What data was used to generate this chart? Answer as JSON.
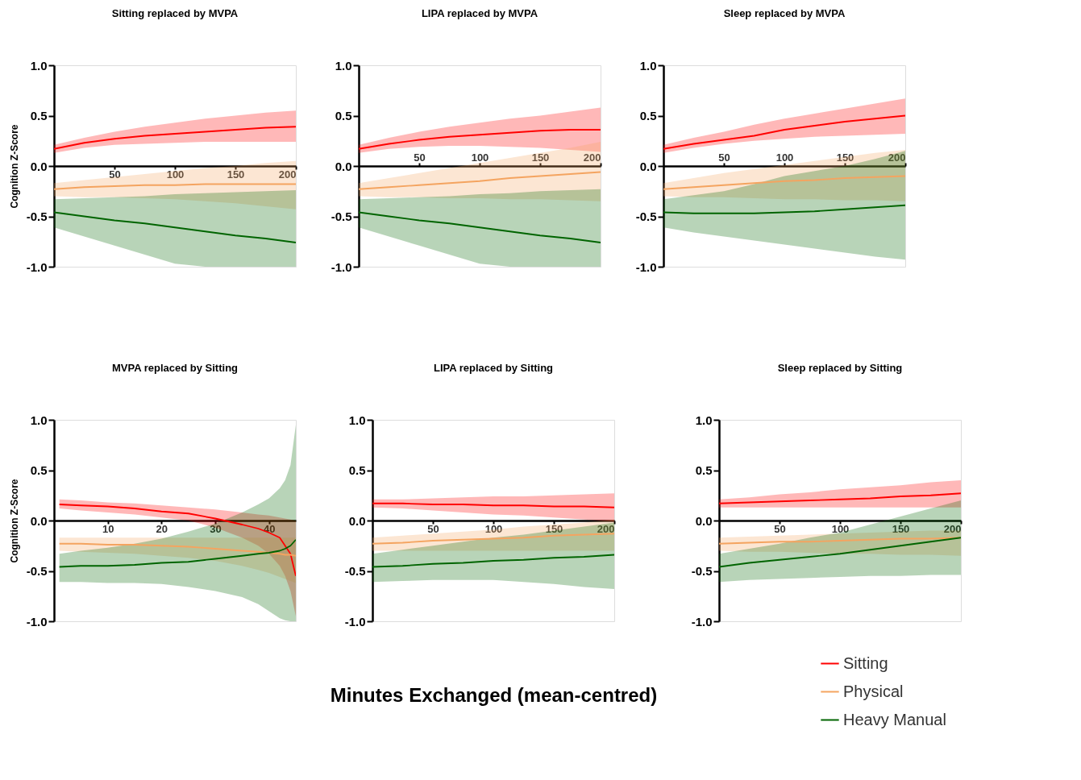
{
  "chart_data": [
    {
      "type": "line",
      "title": "Sitting replaced by MVPA",
      "ylabel": "Cognition Z-Score",
      "x": [
        0,
        25,
        50,
        75,
        100,
        125,
        150,
        175,
        200
      ],
      "xlim": [
        0,
        200
      ],
      "xticks": [
        50,
        100,
        150,
        200
      ],
      "ylim": [
        -1,
        1
      ],
      "yticks": [
        {
          "value": -1,
          "label": "-1.0"
        },
        {
          "value": -0.5,
          "label": "-0.5"
        },
        {
          "value": 0,
          "label": "0.0"
        },
        {
          "value": 0.5,
          "label": "0.5"
        },
        {
          "value": 1,
          "label": "1.0"
        }
      ],
      "grid": false,
      "line_style": "solid",
      "series": [
        {
          "color": "#ff0000",
          "values": [
            0.17,
            0.23,
            0.27,
            0.3,
            0.32,
            0.34,
            0.36,
            0.38,
            0.39
          ],
          "upper": [
            0.21,
            0.28,
            0.34,
            0.39,
            0.43,
            0.47,
            0.5,
            0.53,
            0.55
          ],
          "lower": [
            0.13,
            0.18,
            0.21,
            0.22,
            0.23,
            0.24,
            0.24,
            0.24,
            0.24
          ]
        },
        {
          "color": "#f4a460",
          "values": [
            -0.23,
            -0.21,
            -0.2,
            -0.19,
            -0.19,
            -0.18,
            -0.18,
            -0.18,
            -0.18
          ],
          "upper": [
            -0.17,
            -0.14,
            -0.11,
            -0.08,
            -0.05,
            -0.02,
            0.0,
            0.03,
            0.05
          ],
          "lower": [
            -0.3,
            -0.31,
            -0.31,
            -0.32,
            -0.33,
            -0.35,
            -0.37,
            -0.4,
            -0.43
          ]
        },
        {
          "color": "#006400",
          "values": [
            -0.46,
            -0.5,
            -0.54,
            -0.57,
            -0.61,
            -0.65,
            -0.69,
            -0.72,
            -0.76
          ],
          "upper": [
            -0.33,
            -0.32,
            -0.31,
            -0.3,
            -0.28,
            -0.27,
            -0.26,
            -0.25,
            -0.24
          ],
          "lower": [
            -0.61,
            -0.7,
            -0.79,
            -0.88,
            -0.97,
            -1.0,
            -1.0,
            -1.0,
            -1.0
          ]
        }
      ]
    },
    {
      "type": "line",
      "title": "LIPA replaced by MVPA",
      "x": [
        0,
        25,
        50,
        75,
        100,
        125,
        150,
        175,
        200
      ],
      "xlim": [
        0,
        200
      ],
      "xticks": [
        50,
        100,
        150,
        200
      ],
      "ylim": [
        -1,
        1
      ],
      "yticks": [
        {
          "value": -1,
          "label": "-1.0"
        },
        {
          "value": -0.5,
          "label": "-0.5"
        },
        {
          "value": 0,
          "label": "0.0"
        },
        {
          "value": 0.5,
          "label": "0.5"
        },
        {
          "value": 1,
          "label": "1.0"
        }
      ],
      "grid": false,
      "line_style": "solid",
      "series": [
        {
          "color": "#ff0000",
          "values": [
            0.17,
            0.22,
            0.26,
            0.29,
            0.31,
            0.33,
            0.35,
            0.36,
            0.36
          ],
          "upper": [
            0.21,
            0.28,
            0.34,
            0.39,
            0.43,
            0.47,
            0.5,
            0.54,
            0.58
          ],
          "lower": [
            0.13,
            0.17,
            0.19,
            0.2,
            0.2,
            0.19,
            0.18,
            0.16,
            0.14
          ]
        },
        {
          "color": "#f4a460",
          "values": [
            -0.23,
            -0.21,
            -0.19,
            -0.17,
            -0.15,
            -0.12,
            -0.1,
            -0.08,
            -0.06
          ],
          "upper": [
            -0.17,
            -0.12,
            -0.07,
            -0.02,
            0.03,
            0.08,
            0.13,
            0.18,
            0.24
          ],
          "lower": [
            -0.3,
            -0.31,
            -0.31,
            -0.32,
            -0.32,
            -0.33,
            -0.33,
            -0.34,
            -0.35
          ]
        },
        {
          "color": "#006400",
          "values": [
            -0.46,
            -0.5,
            -0.54,
            -0.57,
            -0.61,
            -0.65,
            -0.69,
            -0.72,
            -0.76
          ],
          "upper": [
            -0.33,
            -0.32,
            -0.31,
            -0.3,
            -0.28,
            -0.27,
            -0.25,
            -0.24,
            -0.23
          ],
          "lower": [
            -0.61,
            -0.7,
            -0.79,
            -0.88,
            -0.97,
            -1.0,
            -1.0,
            -1.0,
            -1.0
          ]
        }
      ]
    },
    {
      "type": "line",
      "title": "Sleep  replaced by MVPA",
      "x": [
        0,
        25,
        50,
        75,
        100,
        125,
        150,
        175,
        200
      ],
      "xlim": [
        0,
        200
      ],
      "xticks": [
        50,
        100,
        150,
        200
      ],
      "ylim": [
        -1,
        1
      ],
      "yticks": [
        {
          "value": -1,
          "label": "-1.0"
        },
        {
          "value": -0.5,
          "label": "-0.5"
        },
        {
          "value": 0,
          "label": "0.0"
        },
        {
          "value": 0.5,
          "label": "0.5"
        },
        {
          "value": 1,
          "label": "1.0"
        }
      ],
      "grid": false,
      "line_style": "solid",
      "series": [
        {
          "color": "#ff0000",
          "values": [
            0.17,
            0.22,
            0.26,
            0.3,
            0.36,
            0.4,
            0.44,
            0.47,
            0.5
          ],
          "upper": [
            0.21,
            0.28,
            0.34,
            0.41,
            0.47,
            0.52,
            0.57,
            0.62,
            0.67
          ],
          "lower": [
            0.13,
            0.18,
            0.22,
            0.25,
            0.27,
            0.29,
            0.3,
            0.31,
            0.32
          ]
        },
        {
          "color": "#f4a460",
          "values": [
            -0.23,
            -0.21,
            -0.19,
            -0.17,
            -0.15,
            -0.14,
            -0.12,
            -0.11,
            -0.1
          ],
          "upper": [
            -0.17,
            -0.12,
            -0.07,
            -0.03,
            0.01,
            0.05,
            0.09,
            0.13,
            0.16
          ],
          "lower": [
            -0.3,
            -0.31,
            -0.31,
            -0.32,
            -0.33,
            -0.33,
            -0.34,
            -0.34,
            -0.35
          ]
        },
        {
          "color": "#006400",
          "values": [
            -0.46,
            -0.47,
            -0.47,
            -0.47,
            -0.46,
            -0.45,
            -0.43,
            -0.41,
            -0.39
          ],
          "upper": [
            -0.33,
            -0.29,
            -0.25,
            -0.18,
            -0.1,
            -0.05,
            0.0,
            0.07,
            0.15
          ],
          "lower": [
            -0.61,
            -0.66,
            -0.7,
            -0.74,
            -0.78,
            -0.82,
            -0.86,
            -0.9,
            -0.93
          ]
        }
      ]
    },
    {
      "type": "line",
      "title": "MVPA replaced by Sitting",
      "ylabel": "Cognition Z-Score",
      "x": [
        1,
        5,
        10,
        15,
        20,
        25,
        30,
        35,
        38,
        40,
        42,
        43,
        44,
        45
      ],
      "xlim": [
        0,
        45
      ],
      "xticks": [
        10,
        20,
        30,
        40
      ],
      "ylim": [
        -1,
        1
      ],
      "yticks": [
        {
          "value": -1,
          "label": "-1.0"
        },
        {
          "value": -0.5,
          "label": "-0.5"
        },
        {
          "value": 0,
          "label": "0.0"
        },
        {
          "value": 0.5,
          "label": "0.5"
        },
        {
          "value": 1,
          "label": "1.0"
        }
      ],
      "grid": false,
      "line_style": "solid",
      "series": [
        {
          "color": "#ff0000",
          "values": [
            0.16,
            0.15,
            0.14,
            0.12,
            0.09,
            0.07,
            0.02,
            -0.04,
            -0.08,
            -0.12,
            -0.17,
            -0.25,
            -0.33,
            -0.55
          ],
          "upper": [
            0.21,
            0.2,
            0.18,
            0.17,
            0.15,
            0.13,
            0.11,
            0.08,
            0.06,
            0.05,
            0.03,
            0.02,
            0.01,
            0.0
          ],
          "lower": [
            0.12,
            0.1,
            0.08,
            0.06,
            0.03,
            0.0,
            -0.07,
            -0.17,
            -0.25,
            -0.33,
            -0.45,
            -0.55,
            -0.7,
            -0.95
          ]
        },
        {
          "color": "#f4a460",
          "values": [
            -0.23,
            -0.23,
            -0.24,
            -0.24,
            -0.25,
            -0.26,
            -0.28,
            -0.3,
            -0.31,
            -0.32,
            -0.33,
            -0.34,
            -0.34,
            -0.35
          ],
          "upper": [
            -0.17,
            -0.17,
            -0.17,
            -0.17,
            -0.17,
            -0.17,
            -0.17,
            -0.17,
            -0.17,
            -0.17,
            -0.17,
            -0.17,
            -0.17,
            -0.17
          ],
          "lower": [
            -0.3,
            -0.31,
            -0.32,
            -0.33,
            -0.35,
            -0.37,
            -0.4,
            -0.45,
            -0.49,
            -0.52,
            -0.56,
            -0.58,
            -0.6,
            -0.62
          ]
        },
        {
          "color": "#006400",
          "values": [
            -0.46,
            -0.45,
            -0.45,
            -0.44,
            -0.42,
            -0.41,
            -0.38,
            -0.35,
            -0.33,
            -0.32,
            -0.3,
            -0.28,
            -0.25,
            -0.19
          ],
          "upper": [
            -0.33,
            -0.3,
            -0.27,
            -0.23,
            -0.18,
            -0.11,
            -0.03,
            0.08,
            0.16,
            0.22,
            0.32,
            0.4,
            0.55,
            0.95
          ],
          "lower": [
            -0.61,
            -0.61,
            -0.62,
            -0.62,
            -0.63,
            -0.66,
            -0.7,
            -0.76,
            -0.83,
            -0.9,
            -0.97,
            -0.99,
            -1.0,
            -1.0
          ]
        }
      ]
    },
    {
      "type": "line",
      "title": "LIPA replaced by Sitting",
      "xlabel": "Minutes Exchanged (mean-centred)",
      "x": [
        0,
        25,
        50,
        75,
        100,
        125,
        150,
        175,
        200
      ],
      "xlim": [
        0,
        200
      ],
      "xticks": [
        50,
        100,
        150,
        200
      ],
      "ylim": [
        -1,
        1
      ],
      "yticks": [
        {
          "value": -1,
          "label": "-1.0"
        },
        {
          "value": -0.5,
          "label": "-0.5"
        },
        {
          "value": 0,
          "label": "0.0"
        },
        {
          "value": 0.5,
          "label": "0.5"
        },
        {
          "value": 1,
          "label": "1.0"
        }
      ],
      "grid": false,
      "line_style": "solid",
      "series": [
        {
          "color": "#ff0000",
          "values": [
            0.17,
            0.17,
            0.16,
            0.16,
            0.15,
            0.15,
            0.14,
            0.14,
            0.13
          ],
          "upper": [
            0.21,
            0.21,
            0.22,
            0.23,
            0.24,
            0.24,
            0.25,
            0.26,
            0.27
          ],
          "lower": [
            0.13,
            0.12,
            0.1,
            0.08,
            0.06,
            0.05,
            0.03,
            0.01,
            -0.01
          ]
        },
        {
          "color": "#f4a460",
          "values": [
            -0.23,
            -0.22,
            -0.2,
            -0.19,
            -0.18,
            -0.17,
            -0.15,
            -0.14,
            -0.13
          ],
          "upper": [
            -0.17,
            -0.15,
            -0.13,
            -0.11,
            -0.09,
            -0.06,
            -0.04,
            -0.02,
            0.01
          ],
          "lower": [
            -0.3,
            -0.3,
            -0.3,
            -0.3,
            -0.3,
            -0.3,
            -0.3,
            -0.3,
            -0.3
          ]
        },
        {
          "color": "#006400",
          "values": [
            -0.46,
            -0.45,
            -0.43,
            -0.42,
            -0.4,
            -0.39,
            -0.37,
            -0.36,
            -0.34
          ],
          "upper": [
            -0.33,
            -0.29,
            -0.25,
            -0.21,
            -0.17,
            -0.14,
            -0.1,
            -0.06,
            -0.02
          ],
          "lower": [
            -0.61,
            -0.6,
            -0.59,
            -0.59,
            -0.59,
            -0.61,
            -0.63,
            -0.66,
            -0.68
          ]
        }
      ]
    },
    {
      "type": "line",
      "title": "Sleep replaced by Sitting",
      "x": [
        0,
        25,
        50,
        75,
        100,
        125,
        150,
        175,
        200
      ],
      "xlim": [
        0,
        200
      ],
      "xticks": [
        50,
        100,
        150,
        200
      ],
      "ylim": [
        -1,
        1
      ],
      "yticks": [
        {
          "value": -1,
          "label": "-1.0"
        },
        {
          "value": -0.5,
          "label": "-0.5"
        },
        {
          "value": 0,
          "label": "0.0"
        },
        {
          "value": 0.5,
          "label": "0.5"
        },
        {
          "value": 1,
          "label": "1.0"
        }
      ],
      "grid": false,
      "line_style": "solid",
      "legend": "bottom right",
      "series": [
        {
          "name": "Sitting",
          "color": "#ff0000",
          "values": [
            0.17,
            0.18,
            0.19,
            0.2,
            0.21,
            0.22,
            0.24,
            0.25,
            0.27
          ],
          "upper": [
            0.21,
            0.23,
            0.26,
            0.28,
            0.31,
            0.33,
            0.35,
            0.38,
            0.4
          ],
          "lower": [
            0.13,
            0.13,
            0.13,
            0.13,
            0.13,
            0.13,
            0.13,
            0.13,
            0.13
          ]
        },
        {
          "name": "Physical",
          "color": "#f4a460",
          "values": [
            -0.23,
            -0.22,
            -0.21,
            -0.21,
            -0.2,
            -0.19,
            -0.18,
            -0.18,
            -0.17
          ],
          "upper": [
            -0.17,
            -0.16,
            -0.15,
            -0.14,
            -0.13,
            -0.12,
            -0.11,
            -0.1,
            -0.1
          ],
          "lower": [
            -0.3,
            -0.31,
            -0.31,
            -0.32,
            -0.33,
            -0.33,
            -0.34,
            -0.34,
            -0.35
          ]
        },
        {
          "name": "Heavy Manual",
          "color": "#006400",
          "values": [
            -0.46,
            -0.42,
            -0.39,
            -0.36,
            -0.33,
            -0.29,
            -0.25,
            -0.21,
            -0.17
          ],
          "upper": [
            -0.33,
            -0.28,
            -0.23,
            -0.17,
            -0.12,
            -0.04,
            0.04,
            0.12,
            0.2
          ],
          "lower": [
            -0.61,
            -0.59,
            -0.58,
            -0.57,
            -0.56,
            -0.55,
            -0.55,
            -0.54,
            -0.54
          ]
        }
      ]
    }
  ]
}
